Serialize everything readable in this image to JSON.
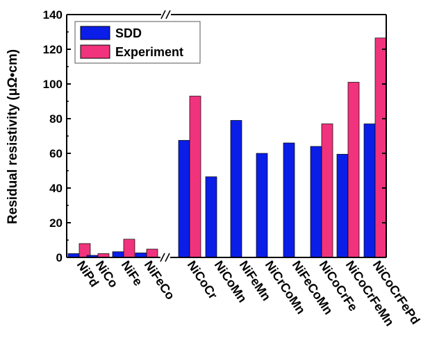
{
  "chart_data": {
    "type": "bar",
    "title": "",
    "xlabel": "",
    "ylabel": "Residual resistivity (μΩ•cm)",
    "ylim": [
      0,
      140
    ],
    "yticks": [
      0,
      20,
      40,
      60,
      80,
      100,
      120,
      140
    ],
    "axis_break": true,
    "legend_position": "top-left",
    "categories": [
      "NiPd",
      "NiCo",
      "NiFe",
      "NiFeCo",
      "NiCoCr",
      "NiCoMn",
      "NiFeMn",
      "NiCrCoMn",
      "NiFeCoMn",
      "NiCoCrFe",
      "NiCoCrFeMn",
      "NiCoCrFePd"
    ],
    "series": [
      {
        "name": "SDD",
        "color": "#0a1ee8",
        "values": [
          2.2,
          1.2,
          3.3,
          2.6,
          67.5,
          46.5,
          79,
          60,
          66,
          64,
          59.5,
          77
        ]
      },
      {
        "name": "Experiment",
        "color": "#f0337c",
        "values": [
          8,
          2.2,
          10.5,
          4.8,
          93,
          null,
          null,
          null,
          null,
          77,
          101,
          126.5
        ]
      }
    ]
  }
}
